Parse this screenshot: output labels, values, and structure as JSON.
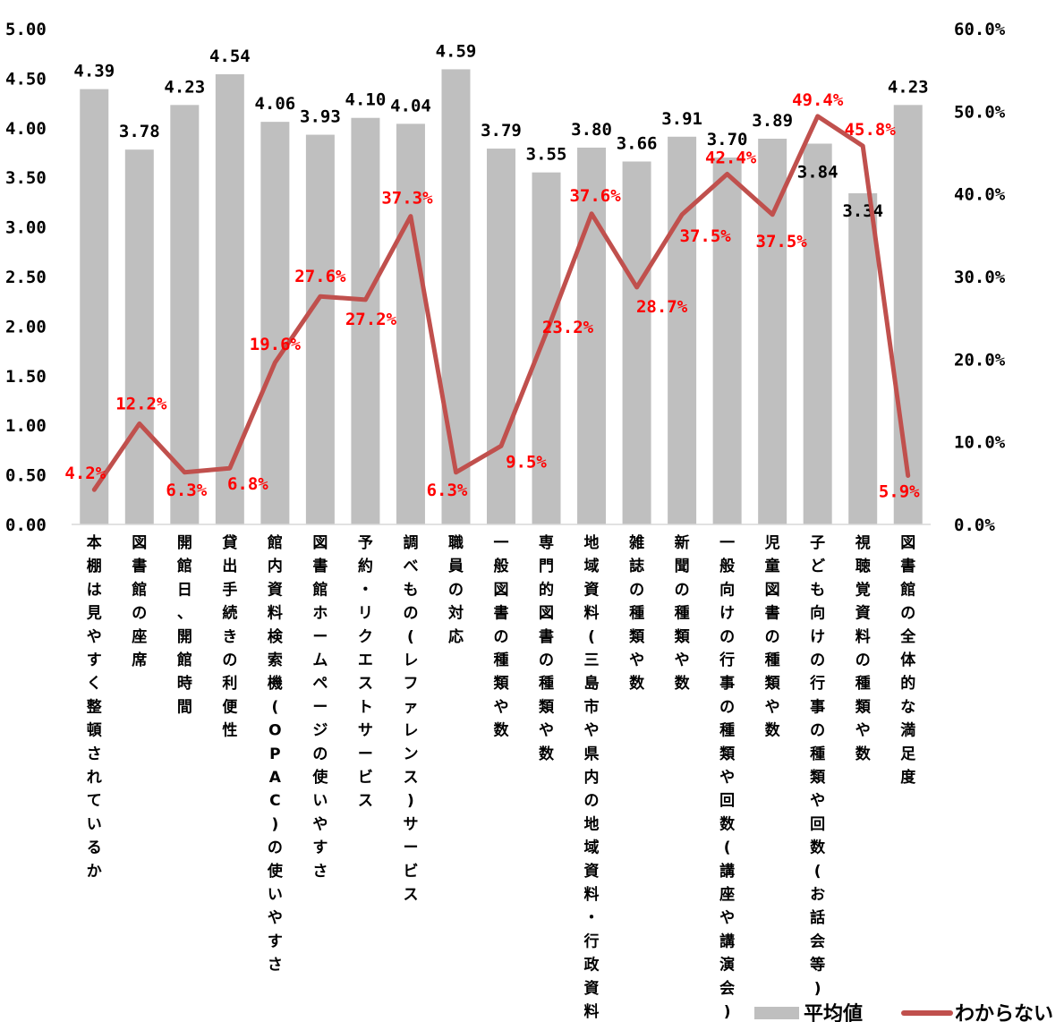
{
  "chart_data": {
    "type": "bar",
    "categories": [
      "本棚は見やすく整頓されているか",
      "図書館の座席",
      "開館日、開館時間",
      "貸出手続きの利便性",
      "館内資料検索機(OPAC)の使いやすさ",
      "図書館ホームページの使いやすさ",
      "予約・リクエストサービス",
      "調べもの(レファレンス)サービス",
      "職員の対応",
      "一般図書の種類や数",
      "専門的図書の種類や数",
      "地域資料(三島市や県内の地域資料・行政資料)",
      "雑誌の種類や数",
      "新聞の種類や数",
      "一般向けの行事の種類や回数(講座や講演会)",
      "児童図書の種類や数",
      "子ども向けの行事の種類や回数(お話会等)",
      "視聴覚資料の種類や数",
      "図書館の全体的な満足度"
    ],
    "series": [
      {
        "name": "平均値",
        "type": "bar",
        "axis": "left",
        "color": "#bfbfbf",
        "values": [
          4.39,
          3.78,
          4.23,
          4.54,
          4.06,
          3.93,
          4.1,
          4.04,
          4.59,
          3.79,
          3.55,
          3.8,
          3.66,
          3.91,
          3.7,
          3.89,
          3.84,
          3.34,
          4.23
        ],
        "labels": [
          "4.39",
          "3.78",
          "4.23",
          "4.54",
          "4.06",
          "3.93",
          "4.10",
          "4.04",
          "4.59",
          "3.79",
          "3.55",
          "3.80",
          "3.66",
          "3.91",
          "3.70",
          "3.89",
          "3.84",
          "3.34",
          "4.23"
        ]
      },
      {
        "name": "わからない",
        "type": "line",
        "axis": "right",
        "color": "#c0504d",
        "label_color": "#ff0000",
        "values": [
          4.2,
          12.2,
          6.3,
          6.8,
          19.6,
          27.6,
          27.2,
          37.3,
          6.3,
          9.5,
          23.2,
          37.6,
          28.7,
          37.5,
          42.4,
          37.5,
          49.4,
          45.8,
          5.9
        ],
        "labels": [
          "4.2%",
          "12.2%",
          "6.3%",
          "6.8%",
          "19.6%",
          "27.6%",
          "27.2%",
          "37.3%",
          "6.3%",
          "9.5%",
          "23.2%",
          "37.6%",
          "28.7%",
          "37.5%",
          "42.4%",
          "37.5%",
          "49.4%",
          "45.8%",
          "5.9%"
        ]
      }
    ],
    "y_left": {
      "min": 0,
      "max": 5,
      "ticks": [
        "0.00",
        "0.50",
        "1.00",
        "1.50",
        "2.00",
        "2.50",
        "3.00",
        "3.50",
        "4.00",
        "4.50",
        "5.00"
      ]
    },
    "y_right": {
      "min": 0,
      "max": 60,
      "ticks": [
        "0.0%",
        "10.0%",
        "20.0%",
        "30.0%",
        "40.0%",
        "50.0%",
        "60.0%"
      ]
    },
    "grid": false,
    "legend_position": "bottom-right"
  }
}
